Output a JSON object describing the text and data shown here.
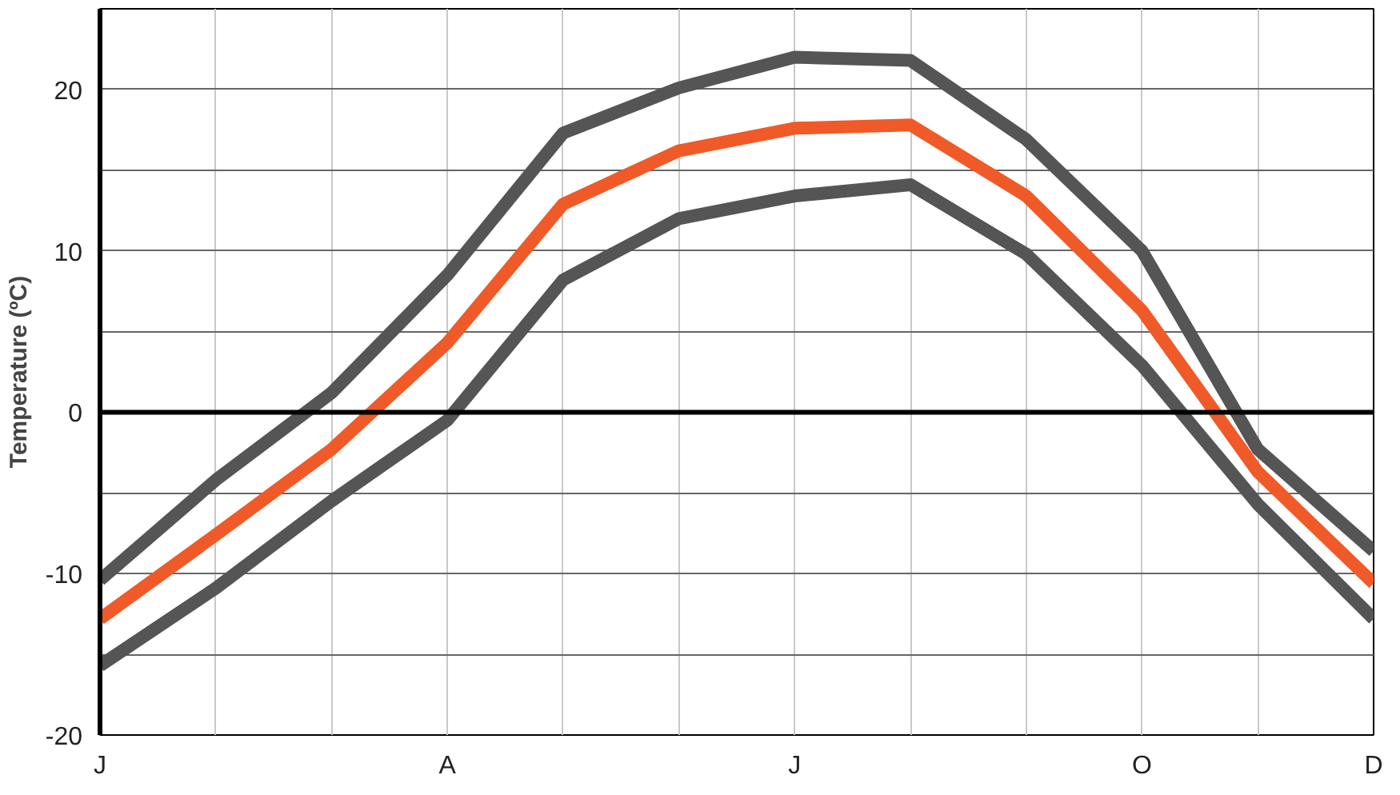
{
  "chart_data": {
    "type": "line",
    "ylabel": "Temperature (ºC)",
    "categories": [
      "J",
      null,
      null,
      "A",
      null,
      null,
      "J",
      null,
      null,
      "O",
      null,
      "D"
    ],
    "ylim": [
      -20,
      25
    ],
    "yticks": [
      -20,
      {
        "value": -15,
        "label": null
      },
      -10,
      {
        "value": -5,
        "label": null
      },
      0,
      {
        "value": 5,
        "label": null
      },
      10,
      {
        "value": 15,
        "label": null
      },
      20
    ],
    "grid": true,
    "marker": "none",
    "line_style": "solid",
    "ref_lines": [
      {
        "axis": "y",
        "value": 0,
        "color": "#000000"
      }
    ],
    "series": [
      {
        "color": "#555555",
        "values": [
          -10.4,
          -4.2,
          1.2,
          8.5,
          17.3,
          20.1,
          22,
          21.8,
          16.9,
          10,
          -2.3,
          -8.6
        ]
      },
      {
        "color": "#f05a28",
        "values": [
          -12.8,
          -7.6,
          -2.3,
          4.3,
          12.9,
          16.2,
          17.6,
          17.8,
          13.4,
          6.3,
          -3.7,
          -10.6
        ]
      },
      {
        "color": "#555555",
        "values": [
          -15.7,
          -10.9,
          -5.5,
          -0.5,
          8.2,
          12,
          13.4,
          14.1,
          9.8,
          2.9,
          -5.7,
          -12.8
        ]
      }
    ]
  }
}
